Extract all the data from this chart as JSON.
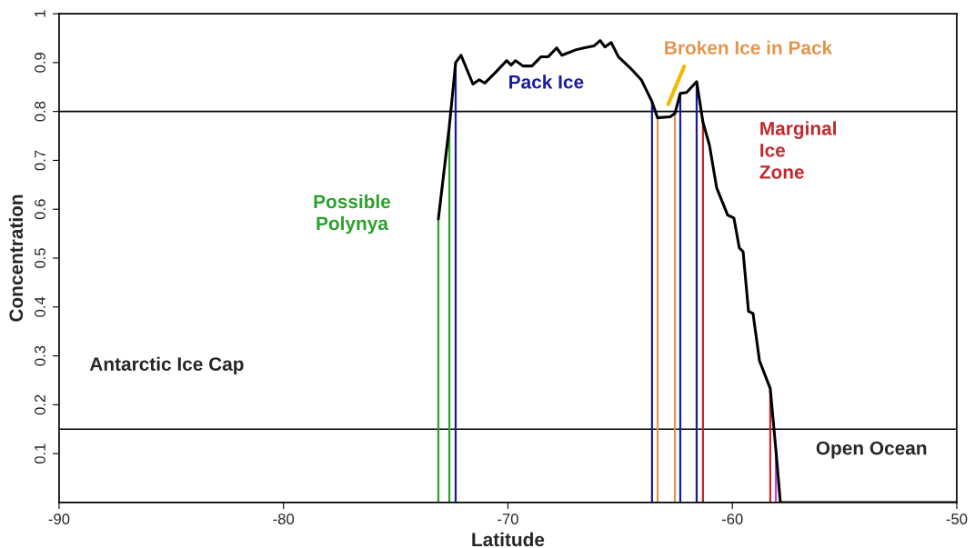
{
  "chart_data": {
    "type": "line",
    "xlabel": "Latitude",
    "ylabel": "Concentration",
    "xlim": [
      -90,
      -50
    ],
    "xticks": [
      -90,
      -80,
      -70,
      -60,
      -50
    ],
    "ylim": [
      0,
      1
    ],
    "yticks": [
      0.1,
      0.2,
      0.3,
      0.4,
      0.5,
      0.6,
      0.7,
      0.8,
      0.9,
      1
    ],
    "grid": false,
    "legend": false,
    "marker": "none",
    "line_style": "solid",
    "series": [
      {
        "color": "#000000",
        "x": [
          -73.1,
          -72.61,
          -72.33,
          -72.09,
          -71.56,
          -71.28,
          -71.03,
          -70.55,
          -70.06,
          -69.86,
          -69.66,
          -69.33,
          -68.93,
          -68.52,
          -68.2,
          -67.83,
          -67.59,
          -66.98,
          -66.62,
          -66.17,
          -65.89,
          -65.68,
          -65.4,
          -65.08,
          -64.55,
          -64.06,
          -63.58,
          -63.33,
          -62.77,
          -62.56,
          -62.32,
          -62.04,
          -61.59,
          -61.31,
          -61.02,
          -60.7,
          -60.21,
          -59.93,
          -59.69,
          -59.52,
          -59.28,
          -59.08,
          -58.79,
          -58.31,
          -58.06,
          -57.86,
          -50
        ],
        "values": [
          0.58,
          0.77,
          0.9,
          0.915,
          0.856,
          0.865,
          0.858,
          0.88,
          0.904,
          0.895,
          0.904,
          0.893,
          0.893,
          0.912,
          0.912,
          0.93,
          0.915,
          0.926,
          0.93,
          0.934,
          0.945,
          0.932,
          0.941,
          0.912,
          0.889,
          0.865,
          0.82,
          0.787,
          0.789,
          0.796,
          0.837,
          0.839,
          0.861,
          0.778,
          0.731,
          0.644,
          0.588,
          0.582,
          0.521,
          0.513,
          0.391,
          0.387,
          0.29,
          0.233,
          0.108,
          0,
          0
        ]
      },
      {
        "type": "bar",
        "name": "Possible\nPolynya",
        "color": "#2ca02c",
        "x": [
          -73.1,
          -72.61
        ],
        "values": [
          0.58,
          0.77
        ]
      },
      {
        "type": "bar",
        "name": "Pack Ice",
        "color": "#1a1aa0",
        "x": [
          -72.33,
          -63.58,
          -62.32,
          -61.59
        ],
        "values": [
          0.9,
          0.82,
          0.837,
          0.861
        ]
      },
      {
        "type": "bar",
        "name": "Broken Ice in Pack",
        "color": "#e0964e",
        "x": [
          -63.33,
          -62.56
        ],
        "values": [
          0.787,
          0.796
        ]
      },
      {
        "type": "bar",
        "name": "Marginal\nIce\nZone",
        "color": "#c0282d",
        "x": [
          -61.31,
          -58.31
        ],
        "values": [
          0.778,
          0.233
        ]
      },
      {
        "type": "bar",
        "color": "#d040d0",
        "x": [
          -58.06
        ],
        "values": [
          0.108
        ]
      }
    ],
    "ref_lines": [
      {
        "axis": "y",
        "value": 0.8,
        "color": "#000000"
      },
      {
        "axis": "y",
        "value": 0.15,
        "color": "#000000"
      }
    ],
    "annotations": [
      "Antarctic Ice Cap",
      "Open Ocean"
    ]
  }
}
